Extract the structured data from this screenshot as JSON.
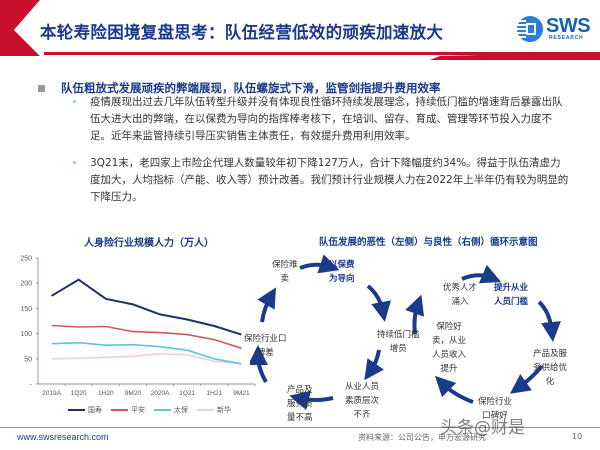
{
  "header": {
    "title": "本轮寿险困境复盘思考：队伍经营低效的顽疾加速放大",
    "logo": {
      "text": "SWS",
      "subtext": "RESEARCH",
      "icon": "sws-logo-icon"
    },
    "accent_color": "#c8102e"
  },
  "main_bullet": {
    "heading": "队伍粗放式发展顽疾的弊端展现，队伍螺旋式下滑，监管剑指提升费用效率"
  },
  "paragraphs": [
    {
      "text": "疫情展现出过去几年队伍转型升级并没有体现良性循环持续发展理念，持续低门槛的增速背后暴露出队伍大进大出的弊端，在以保费为导向的指挥棒考核下，在培训、留存、育成、管理等环节投入力度不足。近年来监管持续引导压实销售主体责任，有效提升费用利用效率。"
    },
    {
      "text": "3Q21末，老四家上市险企代理人数量较年初下降127万人，合计下降幅度约34%。得益于队伍清虚力度加大，人均指标（产能、收入等）预计改善。我们预计行业规模人力在2022年上半年仍有较为明显的下降压力。"
    }
  ],
  "chart": {
    "title": "人身险行业规模人力（万人）"
  },
  "chart_data": {
    "type": "line",
    "title": "人身险行业规模人力（万人）",
    "xlabel": "",
    "ylabel": "",
    "ylim": [
      0,
      250
    ],
    "yticks": [
      "-",
      "50",
      "100",
      "150",
      "200",
      "250"
    ],
    "categories": [
      "2019A",
      "1Q20",
      "1H20",
      "9M20",
      "2020A",
      "1Q21",
      "1H21",
      "9M21"
    ],
    "series": [
      {
        "name": "国寿",
        "color": "#1f2f6e",
        "values": [
          175,
          207,
          169,
          158,
          138,
          128,
          115,
          98
        ]
      },
      {
        "name": "平安",
        "color": "#d05a5a",
        "values": [
          116,
          113,
          114,
          104,
          102,
          98,
          88,
          71
        ]
      },
      {
        "name": "太保",
        "color": "#5bc8d6",
        "values": [
          80,
          82,
          77,
          78,
          74,
          67,
          50,
          40
        ]
      },
      {
        "name": "新华",
        "color": "#f0d0d8",
        "values": [
          50,
          51,
          53,
          55,
          60,
          58,
          45,
          40
        ]
      }
    ],
    "grid": false,
    "legend_position": "bottom"
  },
  "diagram": {
    "title": "队伍发展的恶性（左侧）与良性（右侧）循环示意图",
    "vicious_cycle": [
      {
        "lines": [
          "保险难",
          "卖"
        ],
        "highlight": false
      },
      {
        "lines": [
          "以保费",
          "为导向"
        ],
        "highlight": true
      },
      {
        "lines": [
          "持续低门槛",
          "增员"
        ],
        "highlight": false
      },
      {
        "lines": [
          "从业人员",
          "素质层次",
          "不齐"
        ],
        "highlight": false
      },
      {
        "lines": [
          "产品及",
          "服务质",
          "量不高"
        ],
        "highlight": false
      },
      {
        "lines": [
          "保险行业口",
          "碑差"
        ],
        "highlight": false
      }
    ],
    "virtuous_cycle": [
      {
        "lines": [
          "优秀人才",
          "涌入"
        ],
        "highlight": false
      },
      {
        "lines": [
          "提升从业",
          "人员门槛"
        ],
        "highlight": true
      },
      {
        "lines": [
          "产品及服",
          "务供给优",
          "化"
        ],
        "highlight": false
      },
      {
        "lines": [
          "保险行业",
          "口碑好"
        ],
        "highlight": false
      },
      {
        "lines": [
          "保险好",
          "卖，从业",
          "人员收入",
          "提升"
        ],
        "highlight": false
      }
    ],
    "arrow_color": "#1a3a8c"
  },
  "footer": {
    "url": "www.swsresearch.com",
    "source": "资料来源：公司公告，申万宏源研究",
    "page": "10",
    "watermark": "头条@财是"
  }
}
